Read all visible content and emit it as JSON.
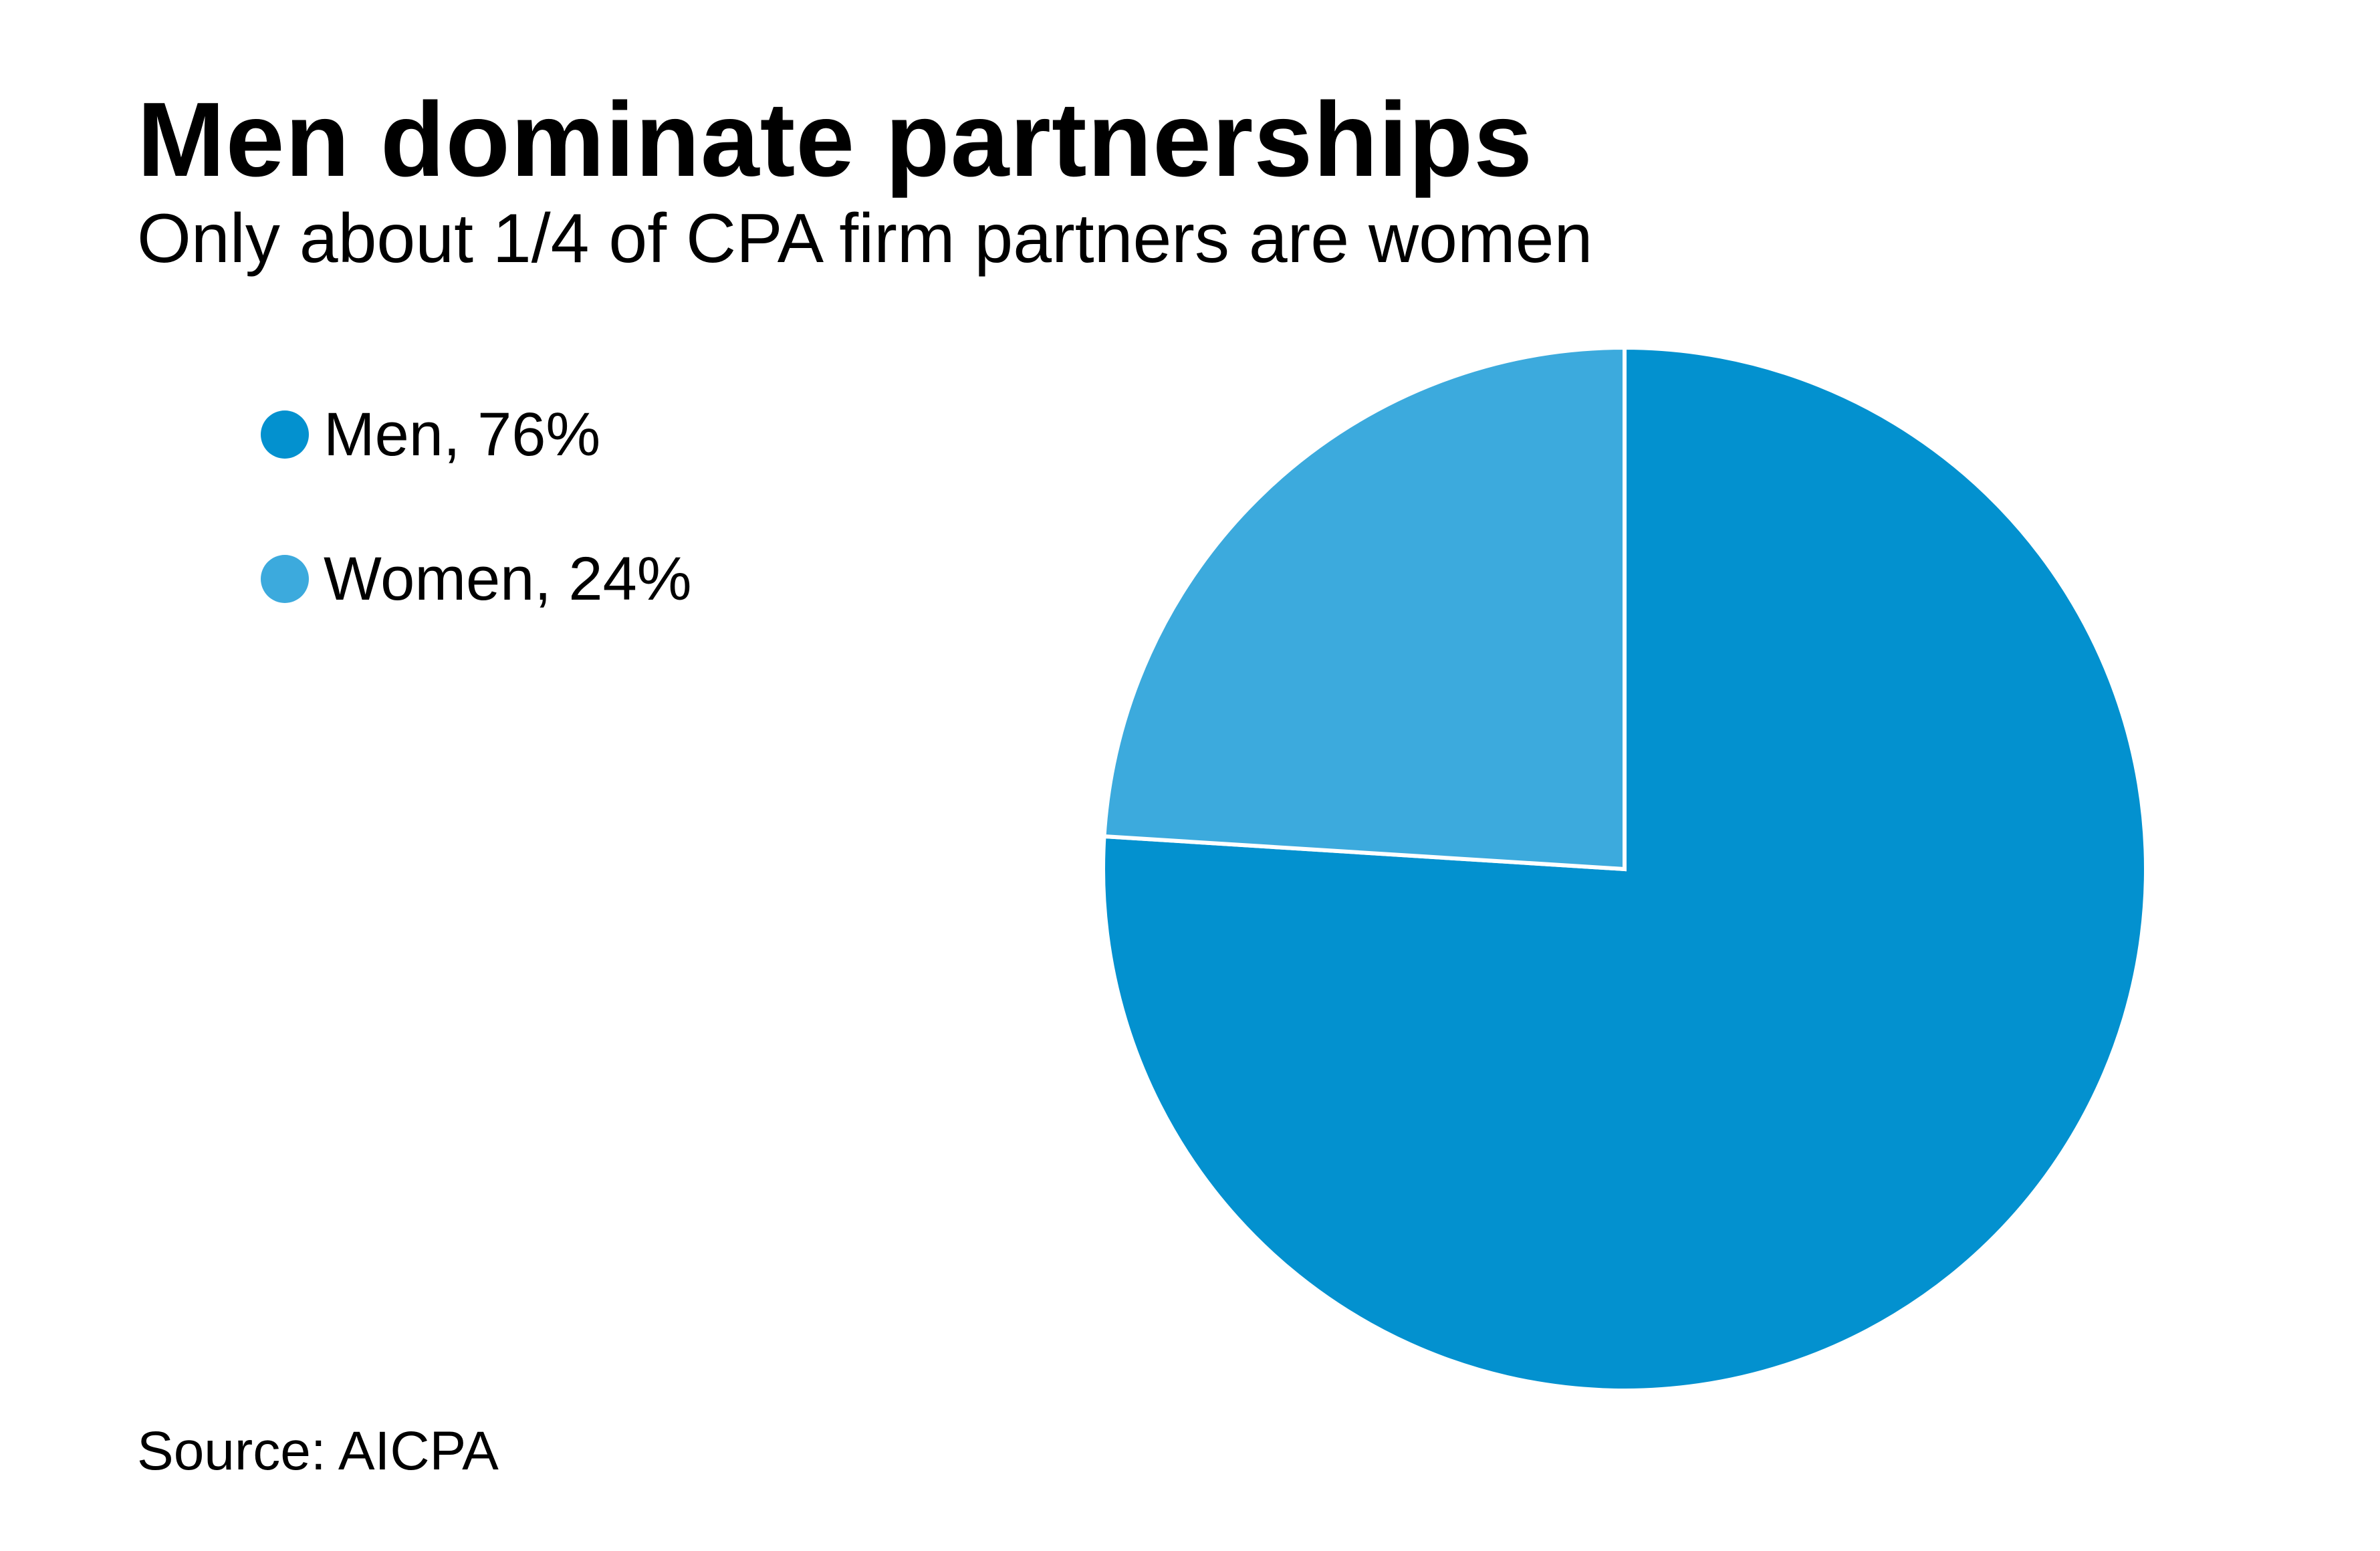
{
  "chart_data": {
    "type": "pie",
    "title": "Men dominate partnerships",
    "subtitle": "Only about 1/4 of CPA firm partners are women",
    "slices": [
      {
        "name": "Men",
        "value": 76,
        "label": "Men, 76%",
        "color": "#0391cf"
      },
      {
        "name": "Women",
        "value": 24,
        "label": "Women, 24%",
        "color": "#3caadd"
      }
    ],
    "start_angle_deg": 0,
    "direction": "clockwise",
    "legend_position": "top-left",
    "source": "Source: AICPA"
  }
}
